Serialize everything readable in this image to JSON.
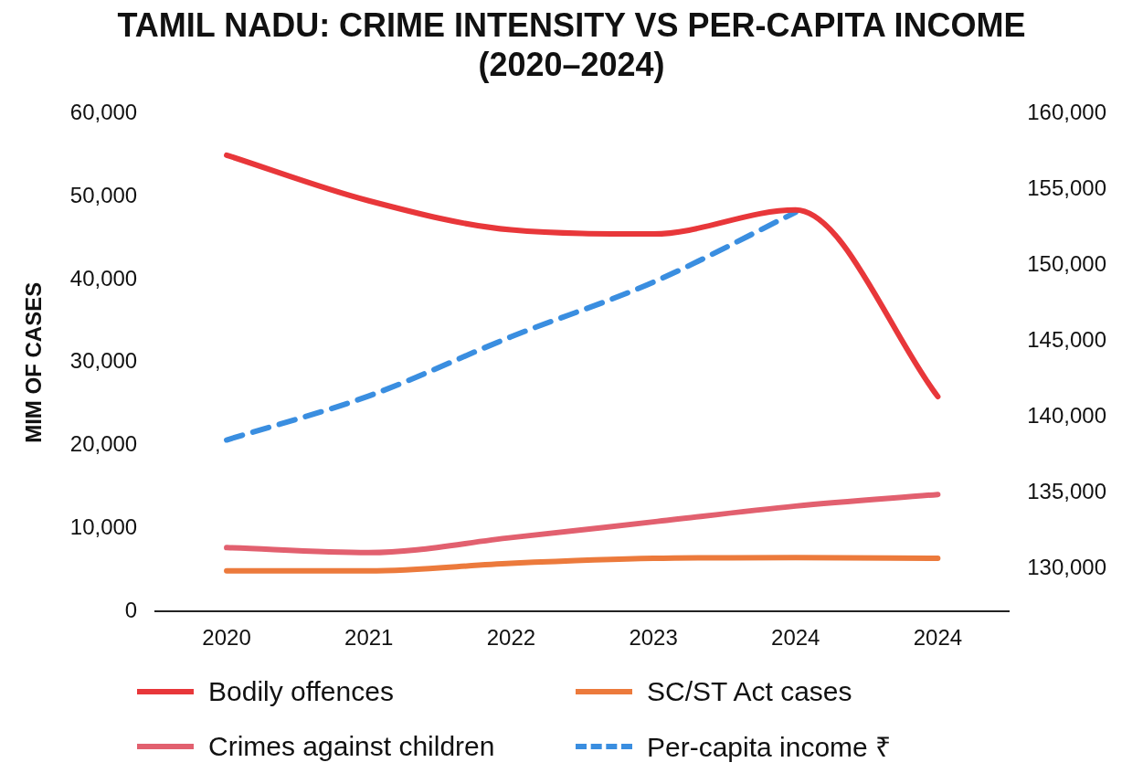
{
  "chart_data": {
    "type": "line",
    "title": "TAMIL NADU: CRIME INTENSITY VS PER-CAPITA INCOME\n(2020–2024)",
    "ylabel": "MIM OF CASES",
    "categories": [
      "2020",
      "2021",
      "2022",
      "2023",
      "2024",
      "2024"
    ],
    "series": [
      {
        "name": "Bodily offences",
        "color": "#e8373a",
        "values": [
          55000,
          49500,
          46000,
          45500,
          48400,
          25900
        ]
      },
      {
        "name": "SC/ST Act cases",
        "color": "#ec7a3c",
        "values": [
          4900,
          4900,
          5800,
          6400,
          6500,
          6400
        ]
      },
      {
        "name": "Crimes against children",
        "color": "#e2606f",
        "values": [
          7700,
          7100,
          8900,
          10800,
          12700,
          14100
        ]
      },
      {
        "name": "Per-capita income ₹",
        "color": "#3a8ee0",
        "axis": "y2",
        "line_style": "dashed",
        "values": [
          138500,
          141400,
          145300,
          148900,
          153500,
          null
        ]
      }
    ],
    "ylim": [
      0,
      60000
    ],
    "yticks": [
      0,
      {
        "value": 10000,
        "label": "10,000"
      },
      {
        "value": 20000,
        "label": "20,000"
      },
      {
        "value": 30000,
        "label": "30,000"
      },
      {
        "value": 40000,
        "label": "40,000"
      },
      {
        "value": 50000,
        "label": "50,000"
      },
      {
        "value": 60000,
        "label": "60,000"
      }
    ],
    "y2lim": [
      127200,
      160000
    ],
    "y2ticks": [
      {
        "value": 130000,
        "label": "130,000"
      },
      {
        "value": 135000,
        "label": "135,000"
      },
      {
        "value": 140000,
        "label": "140,000"
      },
      {
        "value": 145000,
        "label": "145,000"
      },
      {
        "value": 150000,
        "label": "150,000"
      },
      {
        "value": 155000,
        "label": "155,000"
      },
      {
        "value": 160000,
        "label": "160,000"
      }
    ],
    "grid": false,
    "legend": "bottom",
    "marker": "none",
    "line_style": "solid"
  }
}
